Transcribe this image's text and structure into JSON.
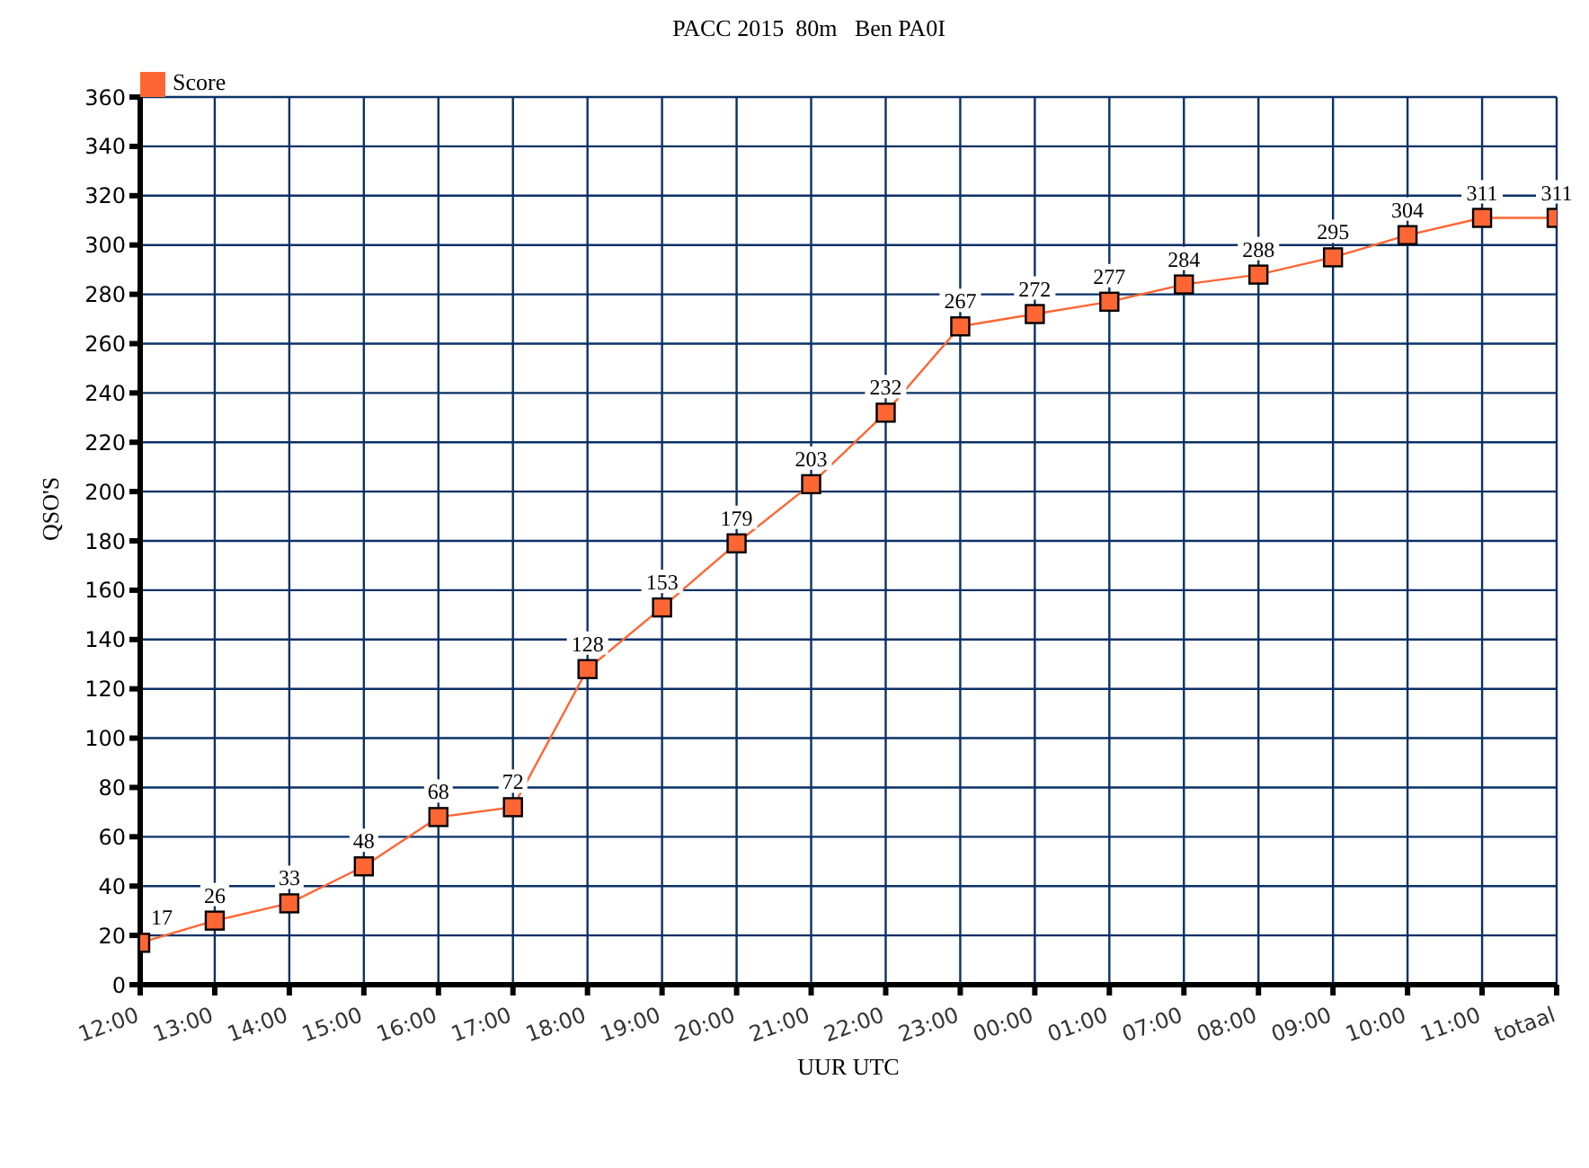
{
  "chart_data": {
    "type": "line",
    "title": "PACC 2015  80m   Ben PA0I",
    "xlabel": "UUR  UTC",
    "ylabel": "QSO'S",
    "categories": [
      "12:00",
      "13:00",
      "14:00",
      "15:00",
      "16:00",
      "17:00",
      "18:00",
      "19:00",
      "20:00",
      "21:00",
      "22:00",
      "23:00",
      "00:00",
      "01:00",
      "07:00",
      "08:00",
      "09:00",
      "10:00",
      "11:00",
      "totaal"
    ],
    "series": [
      {
        "name": "Score",
        "color": "#ff6633",
        "values": [
          17,
          26,
          33,
          48,
          68,
          72,
          128,
          153,
          179,
          203,
          232,
          267,
          272,
          277,
          284,
          288,
          295,
          304,
          311,
          311
        ]
      }
    ],
    "ylim": [
      0,
      360
    ],
    "yticks": [
      0,
      20,
      40,
      60,
      80,
      100,
      120,
      140,
      160,
      180,
      200,
      220,
      240,
      260,
      280,
      300,
      320,
      340,
      360
    ],
    "grid": true,
    "legend": "top left",
    "marker": "square",
    "line_style": "solid",
    "data_labels": true
  }
}
